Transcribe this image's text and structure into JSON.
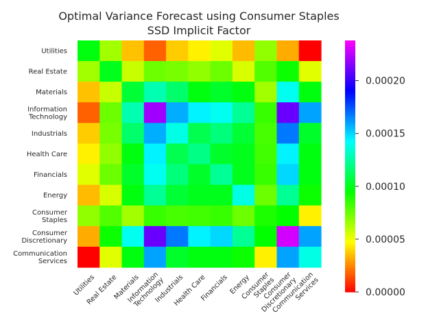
{
  "chart_data": {
    "type": "heatmap",
    "title_line1": "Optimal Variance Forecast using Consumer Staples",
    "title_line2": "SSD Implicit Factor",
    "rows": [
      [
        "Utilities"
      ],
      [
        "Real Estate"
      ],
      [
        "Materials"
      ],
      [
        "Information",
        "Technology"
      ],
      [
        "Industrials"
      ],
      [
        "Health Care"
      ],
      [
        "Financials"
      ],
      [
        "Energy"
      ],
      [
        "Consumer",
        "Staples"
      ],
      [
        "Consumer",
        "Discretionary"
      ],
      [
        "Communication",
        "Services"
      ]
    ],
    "columns": [
      [
        "Utilities"
      ],
      [
        "Real Estate"
      ],
      [
        "Materials"
      ],
      [
        "Information",
        "Technology"
      ],
      [
        "Industrials"
      ],
      [
        "Health Care"
      ],
      [
        "Financials"
      ],
      [
        "Energy"
      ],
      [
        "Consumer",
        "Staples"
      ],
      [
        "Consumer",
        "Discretionary"
      ],
      [
        "Communication",
        "Services"
      ]
    ],
    "values": [
      [
        9.8e-05,
        6.5e-05,
        3.6e-05,
        1.8e-05,
        3.8e-05,
        4.5e-05,
        5.3e-05,
        3.5e-05,
        6.8e-05,
        3.2e-05,
        0.0
      ],
      [
        6.5e-05,
        0.0001,
        5.8e-05,
        7.5e-05,
        7.3e-05,
        6.8e-05,
        7.5e-05,
        5.5e-05,
        8e-05,
        9.3e-05,
        5.3e-05
      ],
      [
        3.6e-05,
        5.8e-05,
        0.000105,
        0.000128,
        0.000115,
        9.8e-05,
        0.000103,
        9.8e-05,
        6.5e-05,
        0.00014,
        9.8e-05
      ],
      [
        1.8e-05,
        7.5e-05,
        0.000128,
        0.00022,
        0.000158,
        0.000145,
        0.00014,
        0.000123,
        8.5e-05,
        0.00021,
        0.00016
      ],
      [
        3.8e-05,
        7.3e-05,
        0.000115,
        0.000158,
        0.000138,
        0.00011,
        0.000118,
        0.000105,
        8.2e-05,
        0.000168,
        0.000103
      ],
      [
        4.5e-05,
        6.8e-05,
        9.8e-05,
        0.000145,
        0.00011,
        0.00012,
        0.000103,
        0.0001,
        8.3e-05,
        0.000145,
        9.8e-05
      ],
      [
        5.3e-05,
        7.5e-05,
        0.000103,
        0.00014,
        0.000118,
        0.000103,
        0.000123,
        0.0001,
        8.5e-05,
        0.00015,
        9.8e-05
      ],
      [
        3.5e-05,
        5.5e-05,
        9.8e-05,
        0.000123,
        0.000105,
        0.0001,
        0.0001,
        0.000138,
        7.5e-05,
        0.000123,
        9.3e-05
      ],
      [
        6.8e-05,
        8e-05,
        6.5e-05,
        8.5e-05,
        8.2e-05,
        8.3e-05,
        8.5e-05,
        7.5e-05,
        9e-05,
        9.5e-05,
        4.5e-05
      ],
      [
        3.2e-05,
        9.3e-05,
        0.00014,
        0.00021,
        0.000168,
        0.000145,
        0.00015,
        0.000123,
        9.5e-05,
        0.00023,
        0.00016
      ],
      [
        0.0,
        5.3e-05,
        9.8e-05,
        0.00016,
        0.000103,
        9.8e-05,
        9.8e-05,
        9.3e-05,
        4.5e-05,
        0.00016,
        0.000138
      ]
    ],
    "vmin": 0.0,
    "vmax": 0.000238,
    "colormap": "gist_rainbow",
    "colorbar_ticks": [
      {
        "value": 0.0,
        "label": "0.00000"
      },
      {
        "value": 5e-05,
        "label": "0.00005"
      },
      {
        "value": 0.0001,
        "label": "0.00010"
      },
      {
        "value": 0.00015,
        "label": "0.00015"
      },
      {
        "value": 0.0002,
        "label": "0.00020"
      }
    ],
    "grid": false
  }
}
